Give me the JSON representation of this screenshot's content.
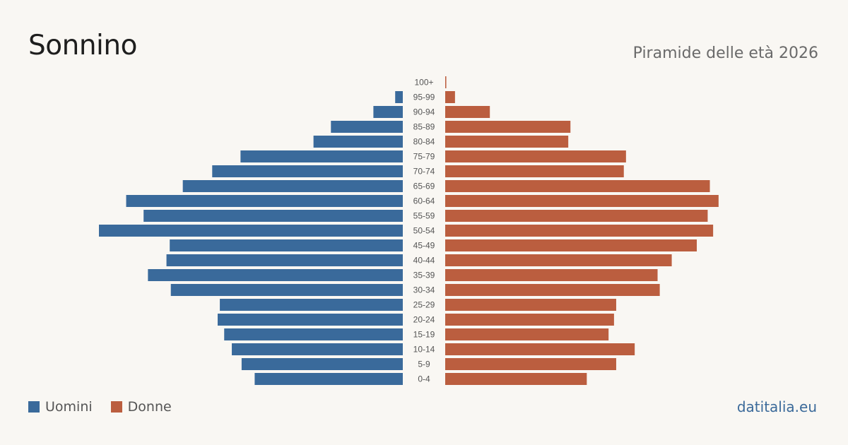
{
  "title": "Sonnino",
  "subtitle": "Piramide delle età 2026",
  "brand": "datitalia.eu",
  "colors": {
    "male": "#3a6a9b",
    "female": "#bb5e3f",
    "background": "#f9f7f3"
  },
  "legend": {
    "male_label": "Uomini",
    "female_label": "Donne"
  },
  "chart_data": {
    "type": "bar",
    "orientation": "horizontal-pyramid",
    "categories": [
      "100+",
      "95-99",
      "90-94",
      "85-89",
      "80-84",
      "75-79",
      "70-74",
      "65-69",
      "60-64",
      "55-59",
      "50-54",
      "45-49",
      "40-44",
      "35-39",
      "30-34",
      "25-29",
      "20-24",
      "15-19",
      "10-14",
      "5-9",
      "0-4"
    ],
    "series": [
      {
        "name": "Uomini",
        "values": [
          0,
          7,
          27,
          66,
          82,
          149,
          175,
          202,
          254,
          238,
          279,
          214,
          217,
          234,
          213,
          168,
          170,
          164,
          157,
          148,
          136
        ]
      },
      {
        "name": "Donne",
        "values": [
          1,
          9,
          41,
          115,
          113,
          166,
          164,
          243,
          251,
          241,
          246,
          231,
          208,
          195,
          197,
          157,
          155,
          150,
          174,
          157,
          130
        ]
      }
    ],
    "xlim": [
      0,
      279
    ],
    "grid": false,
    "legend_position": "bottom-left"
  }
}
